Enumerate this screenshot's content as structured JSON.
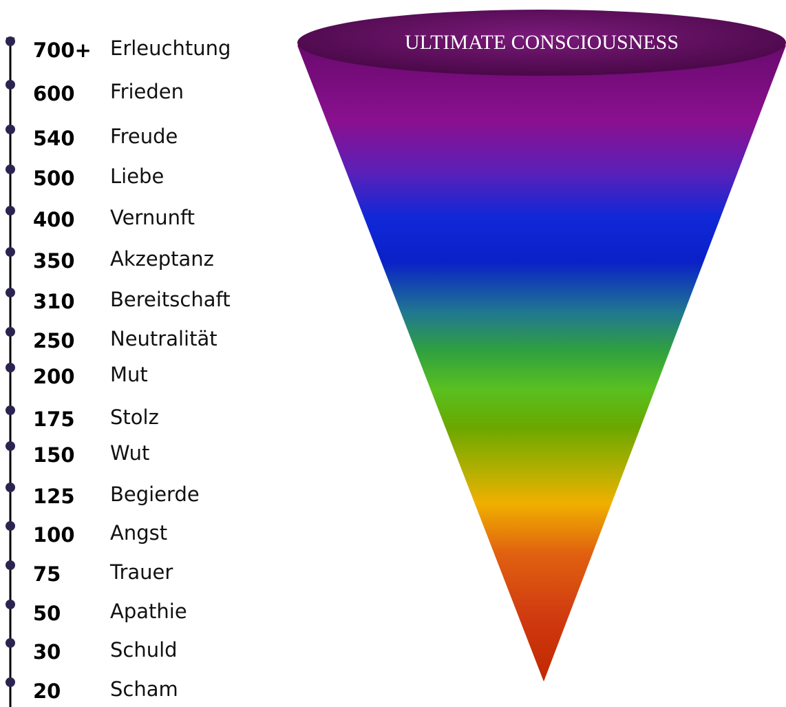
{
  "title": "ULTIMATE CONSCIOUSNESS",
  "levels": [
    {
      "value": "700+",
      "name": "Erleuchtung"
    },
    {
      "value": "600",
      "name": "Frieden"
    },
    {
      "value": "540",
      "name": "Freude"
    },
    {
      "value": "500",
      "name": "Liebe"
    },
    {
      "value": "400",
      "name": "Vernunft"
    },
    {
      "value": "350",
      "name": "Akzeptanz"
    },
    {
      "value": "310",
      "name": "Bereitschaft"
    },
    {
      "value": "250",
      "name": "Neutralität"
    },
    {
      "value": "200",
      "name": "Mut"
    },
    {
      "value": "175",
      "name": "Stolz"
    },
    {
      "value": "150",
      "name": "Wut"
    },
    {
      "value": "125",
      "name": "Begierde"
    },
    {
      "value": "100",
      "name": "Angst"
    },
    {
      "value": "75",
      "name": "Trauer"
    },
    {
      "value": "50",
      "name": "Apathie"
    },
    {
      "value": "30",
      "name": "Schuld"
    },
    {
      "value": "20",
      "name": "Scham"
    }
  ]
}
